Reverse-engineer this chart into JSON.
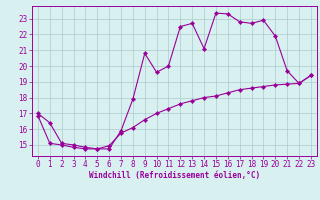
{
  "line1_x": [
    0,
    1,
    2,
    3,
    4,
    5,
    6,
    7,
    8,
    9,
    10,
    11,
    12,
    13,
    14,
    15,
    16,
    17,
    18,
    19,
    20,
    21,
    22,
    23
  ],
  "line1_y": [
    17.0,
    16.4,
    15.1,
    15.0,
    14.85,
    14.75,
    14.75,
    15.9,
    17.9,
    20.8,
    19.6,
    20.0,
    22.5,
    22.7,
    21.1,
    23.35,
    23.3,
    22.8,
    22.7,
    22.9,
    21.9,
    19.7,
    18.9,
    19.4
  ],
  "line2_x": [
    0,
    1,
    2,
    3,
    4,
    5,
    6,
    7,
    8,
    9,
    10,
    11,
    12,
    13,
    14,
    15,
    16,
    17,
    18,
    19,
    20,
    21,
    22,
    23
  ],
  "line2_y": [
    16.85,
    15.1,
    15.0,
    14.85,
    14.75,
    14.75,
    14.95,
    15.75,
    16.1,
    16.6,
    17.0,
    17.3,
    17.6,
    17.8,
    18.0,
    18.1,
    18.3,
    18.5,
    18.6,
    18.7,
    18.8,
    18.85,
    18.9,
    19.4
  ],
  "line_color": "#990099",
  "bg_color": "#d9f0f0",
  "grid_color": "#aacccc",
  "xlabel": "Windchill (Refroidissement éolien,°C)",
  "xticks": [
    0,
    1,
    2,
    3,
    4,
    5,
    6,
    7,
    8,
    9,
    10,
    11,
    12,
    13,
    14,
    15,
    16,
    17,
    18,
    19,
    20,
    21,
    22,
    23
  ],
  "yticks": [
    15,
    16,
    17,
    18,
    19,
    20,
    21,
    22,
    23
  ],
  "xlim": [
    -0.5,
    23.5
  ],
  "ylim": [
    14.3,
    23.8
  ],
  "xlabel_fontsize": 5.5,
  "tick_fontsize": 5.5,
  "marker": "D",
  "marker_size": 2.2
}
